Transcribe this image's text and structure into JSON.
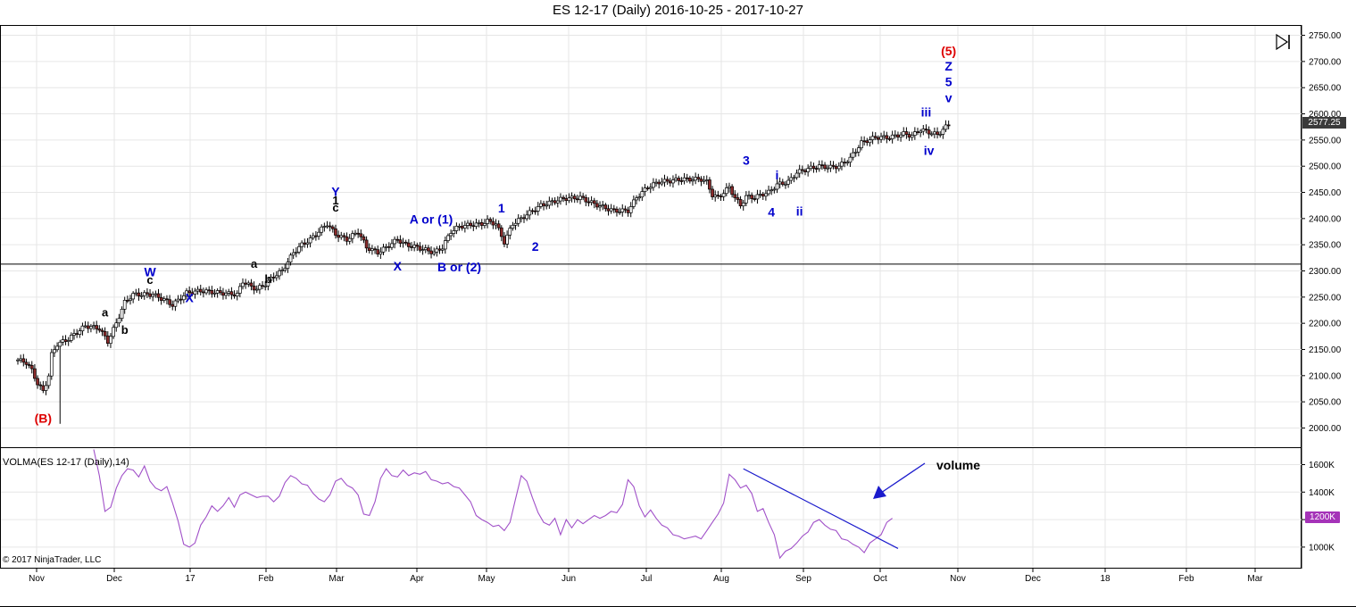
{
  "title": "ES 12-17 (Daily)  2016-10-25 - 2017-10-27",
  "volma_label": "VOLMA(ES 12-17 (Daily),14)",
  "copyright": "© 2017 NinjaTrader, LLC",
  "price_tag": "2577.25",
  "vol_tag": "1200K",
  "icons": [
    "step-forward-icon"
  ],
  "colors": {
    "wave_blue": "#0000cc",
    "wave_red": "#dd0000",
    "volume_line": "#a050c8",
    "trend_line": "#1a1acc"
  },
  "chart_data": [
    {
      "type": "candlestick",
      "title": "ES 12-17 (Daily)  2016-10-25 - 2017-10-27",
      "y_ticks": [
        "2750.00",
        "2700.00",
        "2650.00",
        "2600.00",
        "2550.00",
        "2500.00",
        "2450.00",
        "2400.00",
        "2350.00",
        "2300.00",
        "2250.00",
        "2200.00",
        "2150.00",
        "2100.00",
        "2050.00",
        "2000.00"
      ],
      "ylim": [
        1965,
        2768
      ],
      "x_ticks": [
        "Nov",
        "Dec",
        "17",
        "Feb",
        "Mar",
        "Apr",
        "May",
        "Jun",
        "Jul",
        "Aug",
        "Sep",
        "Oct",
        "Nov",
        "Dec",
        "18",
        "Feb",
        "Mar"
      ],
      "grid": true,
      "close_path": [
        [
          0,
          2130
        ],
        [
          3,
          2125
        ],
        [
          5,
          2110
        ],
        [
          7,
          2085
        ],
        [
          9,
          2070
        ],
        [
          11,
          2100
        ],
        [
          12,
          2140
        ],
        [
          14,
          2160
        ],
        [
          18,
          2170
        ],
        [
          24,
          2195
        ],
        [
          29,
          2190
        ],
        [
          32,
          2165
        ],
        [
          35,
          2200
        ],
        [
          38,
          2240
        ],
        [
          41,
          2255
        ],
        [
          48,
          2255
        ],
        [
          52,
          2245
        ],
        [
          55,
          2235
        ],
        [
          60,
          2258
        ],
        [
          65,
          2262
        ],
        [
          72,
          2258
        ],
        [
          78,
          2255
        ],
        [
          80,
          2280
        ],
        [
          83,
          2270
        ],
        [
          85,
          2265
        ],
        [
          88,
          2275
        ],
        [
          91,
          2290
        ],
        [
          94,
          2300
        ],
        [
          98,
          2335
        ],
        [
          101,
          2350
        ],
        [
          104,
          2360
        ],
        [
          107,
          2375
        ],
        [
          110,
          2390
        ],
        [
          113,
          2370
        ],
        [
          117,
          2360
        ],
        [
          121,
          2375
        ],
        [
          124,
          2345
        ],
        [
          126,
          2340
        ],
        [
          128,
          2335
        ],
        [
          131,
          2345
        ],
        [
          135,
          2360
        ],
        [
          138,
          2350
        ],
        [
          142,
          2345
        ],
        [
          145,
          2340
        ],
        [
          148,
          2335
        ],
        [
          151,
          2345
        ],
        [
          154,
          2375
        ],
        [
          157,
          2385
        ],
        [
          161,
          2388
        ],
        [
          165,
          2390
        ],
        [
          167,
          2395
        ],
        [
          170,
          2390
        ],
        [
          173,
          2355
        ],
        [
          176,
          2390
        ],
        [
          179,
          2400
        ],
        [
          183,
          2415
        ],
        [
          186,
          2425
        ],
        [
          190,
          2432
        ],
        [
          194,
          2438
        ],
        [
          200,
          2440
        ],
        [
          205,
          2428
        ],
        [
          209,
          2420
        ],
        [
          212,
          2415
        ],
        [
          217,
          2415
        ],
        [
          220,
          2440
        ],
        [
          224,
          2460
        ],
        [
          228,
          2470
        ],
        [
          232,
          2472
        ],
        [
          236,
          2475
        ],
        [
          240,
          2475
        ],
        [
          243,
          2475
        ],
        [
          245,
          2470
        ],
        [
          247,
          2445
        ],
        [
          249,
          2440
        ],
        [
          251,
          2450
        ],
        [
          253,
          2460
        ],
        [
          255,
          2440
        ],
        [
          257,
          2425
        ],
        [
          259,
          2442
        ],
        [
          262,
          2440
        ],
        [
          264,
          2445
        ],
        [
          267,
          2450
        ],
        [
          270,
          2465
        ],
        [
          274,
          2470
        ],
        [
          277,
          2488
        ],
        [
          281,
          2495
        ],
        [
          285,
          2500
        ],
        [
          289,
          2498
        ],
        [
          292,
          2500
        ],
        [
          296,
          2515
        ],
        [
          300,
          2545
        ],
        [
          305,
          2555
        ],
        [
          310,
          2555
        ],
        [
          315,
          2562
        ],
        [
          318,
          2558
        ],
        [
          321,
          2570
        ],
        [
          324,
          2565
        ],
        [
          327,
          2560
        ],
        [
          329,
          2570
        ],
        [
          331,
          2580
        ]
      ],
      "annotations": [
        {
          "text": "(5)",
          "color": "red",
          "x": 331,
          "y": 2712
        },
        {
          "text": "Z",
          "color": "blue",
          "x": 331,
          "y": 2683
        },
        {
          "text": "5",
          "color": "blue",
          "x": 331,
          "y": 2653
        },
        {
          "text": "v",
          "color": "blue",
          "x": 331,
          "y": 2622
        },
        {
          "text": "iii",
          "color": "blue",
          "x": 323,
          "y": 2595
        },
        {
          "text": "iv",
          "color": "blue",
          "x": 324,
          "y": 2522
        },
        {
          "text": "3",
          "color": "blue",
          "x": 259,
          "y": 2503
        },
        {
          "text": "i",
          "color": "blue",
          "x": 270,
          "y": 2475
        },
        {
          "text": "4",
          "color": "blue",
          "x": 268,
          "y": 2404
        },
        {
          "text": "ii",
          "color": "blue",
          "x": 278,
          "y": 2406
        },
        {
          "text": "1",
          "color": "blue",
          "x": 172,
          "y": 2412
        },
        {
          "text": "2",
          "color": "blue",
          "x": 184,
          "y": 2338
        },
        {
          "text": "A or (1)",
          "color": "blue",
          "x": 147,
          "y": 2390
        },
        {
          "text": "B or (2)",
          "color": "blue",
          "x": 157,
          "y": 2299
        },
        {
          "text": "X",
          "color": "blue",
          "x": 135,
          "y": 2301
        },
        {
          "text": "Y",
          "color": "blue",
          "x": 113,
          "y": 2443
        },
        {
          "text": "1",
          "color": "black",
          "x": 113,
          "y": 2427
        },
        {
          "text": "c",
          "color": "black",
          "x": 113,
          "y": 2413
        },
        {
          "text": "a",
          "color": "black",
          "x": 84,
          "y": 2306
        },
        {
          "text": "b",
          "color": "black",
          "x": 89,
          "y": 2277
        },
        {
          "text": "W",
          "color": "blue",
          "x": 47,
          "y": 2290
        },
        {
          "text": "c",
          "color": "black",
          "x": 47,
          "y": 2275
        },
        {
          "text": "X",
          "color": "blue",
          "x": 61,
          "y": 2240
        },
        {
          "text": "a",
          "color": "black",
          "x": 31,
          "y": 2213
        },
        {
          "text": "b",
          "color": "black",
          "x": 38,
          "y": 2180
        },
        {
          "text": "(B)",
          "color": "red",
          "x": 9,
          "y": 2010
        }
      ],
      "horizontal_line": 2313
    },
    {
      "type": "line",
      "title": "VOLMA(ES 12-17 (Daily),14)",
      "y_ticks": [
        "1600K",
        "1400K",
        "1200K",
        "1000K"
      ],
      "ylim": [
        850,
        1720
      ],
      "series": [
        {
          "name": "VOLMA(ES 12-17 (Daily),14)",
          "points": [
            [
              27,
              1710
            ],
            [
              29,
              1520
            ],
            [
              31,
              1260
            ],
            [
              33,
              1290
            ],
            [
              35,
              1430
            ],
            [
              37,
              1520
            ],
            [
              39,
              1570
            ],
            [
              41,
              1560
            ],
            [
              43,
              1510
            ],
            [
              45,
              1590
            ],
            [
              47,
              1480
            ],
            [
              49,
              1430
            ],
            [
              51,
              1410
            ],
            [
              53,
              1440
            ],
            [
              55,
              1320
            ],
            [
              57,
              1190
            ],
            [
              59,
              1020
            ],
            [
              61,
              1000
            ],
            [
              63,
              1030
            ],
            [
              65,
              1160
            ],
            [
              67,
              1220
            ],
            [
              69,
              1300
            ],
            [
              71,
              1260
            ],
            [
              73,
              1300
            ],
            [
              75,
              1360
            ],
            [
              77,
              1290
            ],
            [
              79,
              1380
            ],
            [
              81,
              1400
            ],
            [
              83,
              1380
            ],
            [
              85,
              1360
            ],
            [
              87,
              1370
            ],
            [
              89,
              1370
            ],
            [
              91,
              1330
            ],
            [
              93,
              1370
            ],
            [
              95,
              1470
            ],
            [
              97,
              1520
            ],
            [
              99,
              1500
            ],
            [
              101,
              1460
            ],
            [
              103,
              1450
            ],
            [
              105,
              1390
            ],
            [
              107,
              1350
            ],
            [
              109,
              1330
            ],
            [
              111,
              1380
            ],
            [
              113,
              1480
            ],
            [
              115,
              1500
            ],
            [
              117,
              1450
            ],
            [
              119,
              1430
            ],
            [
              121,
              1380
            ],
            [
              123,
              1240
            ],
            [
              125,
              1230
            ],
            [
              127,
              1330
            ],
            [
              129,
              1500
            ],
            [
              131,
              1570
            ],
            [
              133,
              1520
            ],
            [
              135,
              1510
            ],
            [
              137,
              1560
            ],
            [
              139,
              1520
            ],
            [
              141,
              1540
            ],
            [
              143,
              1530
            ],
            [
              145,
              1550
            ],
            [
              147,
              1490
            ],
            [
              149,
              1480
            ],
            [
              151,
              1460
            ],
            [
              153,
              1470
            ],
            [
              155,
              1440
            ],
            [
              157,
              1430
            ],
            [
              159,
              1380
            ],
            [
              161,
              1330
            ],
            [
              163,
              1230
            ],
            [
              165,
              1200
            ],
            [
              167,
              1180
            ],
            [
              169,
              1150
            ],
            [
              171,
              1160
            ],
            [
              173,
              1120
            ],
            [
              175,
              1180
            ],
            [
              177,
              1350
            ],
            [
              179,
              1520
            ],
            [
              181,
              1480
            ],
            [
              183,
              1360
            ],
            [
              185,
              1250
            ],
            [
              187,
              1180
            ],
            [
              189,
              1160
            ],
            [
              191,
              1210
            ],
            [
              193,
              1090
            ],
            [
              195,
              1200
            ],
            [
              197,
              1140
            ],
            [
              199,
              1200
            ],
            [
              201,
              1170
            ],
            [
              203,
              1200
            ],
            [
              205,
              1230
            ],
            [
              207,
              1210
            ],
            [
              209,
              1230
            ],
            [
              211,
              1260
            ],
            [
              213,
              1250
            ],
            [
              215,
              1310
            ],
            [
              217,
              1490
            ],
            [
              219,
              1440
            ],
            [
              221,
              1300
            ],
            [
              223,
              1220
            ],
            [
              225,
              1270
            ],
            [
              227,
              1210
            ],
            [
              229,
              1160
            ],
            [
              231,
              1140
            ],
            [
              233,
              1090
            ],
            [
              235,
              1080
            ],
            [
              237,
              1060
            ],
            [
              239,
              1070
            ],
            [
              241,
              1080
            ],
            [
              243,
              1060
            ],
            [
              245,
              1120
            ],
            [
              247,
              1180
            ],
            [
              249,
              1240
            ],
            [
              251,
              1320
            ],
            [
              253,
              1530
            ],
            [
              255,
              1490
            ],
            [
              257,
              1430
            ],
            [
              259,
              1450
            ],
            [
              261,
              1390
            ],
            [
              263,
              1260
            ],
            [
              265,
              1280
            ],
            [
              267,
              1180
            ],
            [
              269,
              1090
            ],
            [
              271,
              920
            ],
            [
              273,
              970
            ],
            [
              275,
              990
            ],
            [
              277,
              1030
            ],
            [
              279,
              1080
            ],
            [
              281,
              1110
            ],
            [
              283,
              1180
            ],
            [
              285,
              1200
            ],
            [
              287,
              1160
            ],
            [
              289,
              1130
            ],
            [
              291,
              1120
            ],
            [
              293,
              1060
            ],
            [
              295,
              1050
            ],
            [
              297,
              1020
            ],
            [
              299,
              1000
            ],
            [
              301,
              960
            ],
            [
              303,
              1030
            ],
            [
              305,
              1060
            ],
            [
              307,
              1090
            ],
            [
              309,
              1180
            ],
            [
              311,
              1210
            ]
          ]
        }
      ],
      "trend_line": [
        [
          258,
          1570
        ],
        [
          313,
          990
        ]
      ],
      "annotation": {
        "text": "volume",
        "color": "black",
        "x": 295,
        "y": 1610
      }
    }
  ]
}
